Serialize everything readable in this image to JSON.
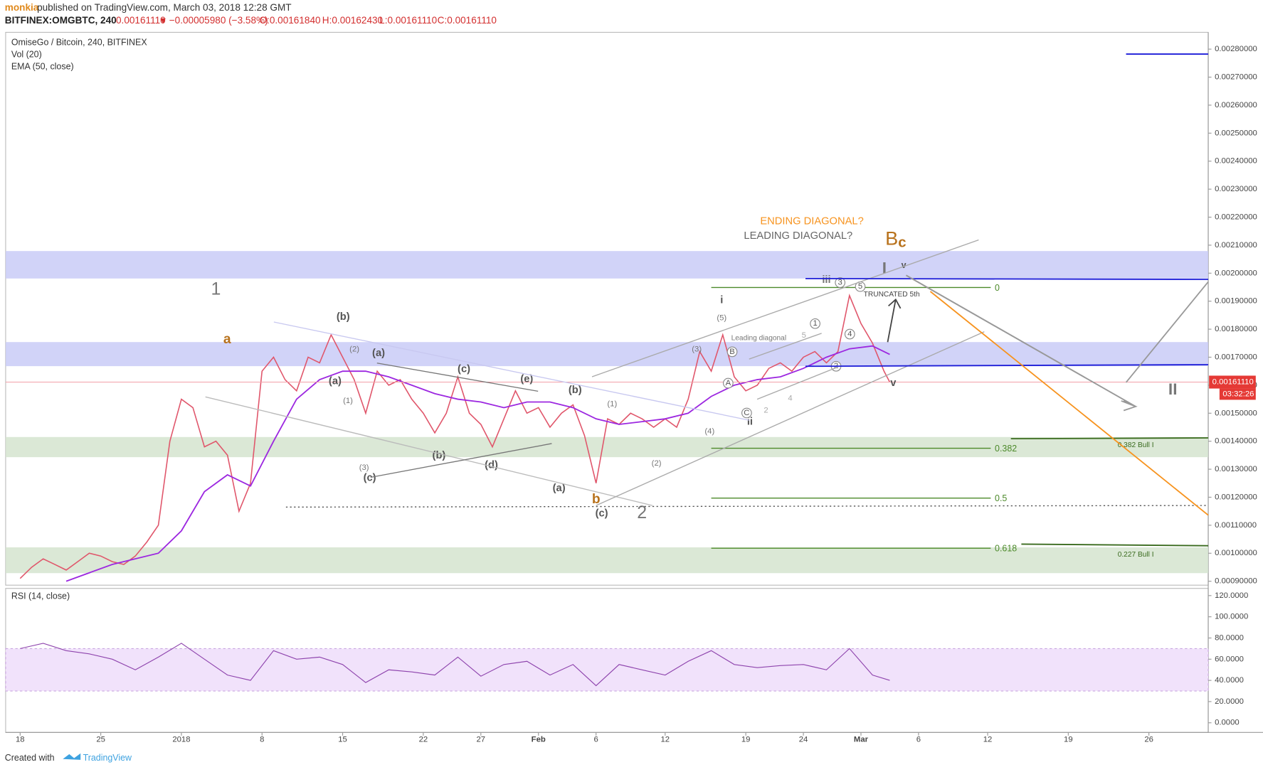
{
  "header": {
    "author": "monkia",
    "published": "published on TradingView.com, March 03, 2018 12:28 GMT",
    "symbol": "BITFINEX:OMGBTC, 240",
    "last": "0.00161110",
    "arrow": "▼",
    "change": "−0.00005980 (−3.58%)",
    "open": "O:0.00161840",
    "high": "H:0.00162430",
    "low": "L:0.00161110",
    "close": "C:0.00161110"
  },
  "footer": {
    "created": "Created with",
    "brand": "TradingView"
  },
  "chart_data": {
    "type": "line",
    "title": "OmiseGo / Bitcoin, 240, BITFINEX",
    "volume_label": "Vol (20)",
    "xlim": [
      -1.26,
      103.15
    ],
    "xticks": [
      {
        "value": 0,
        "label": "18"
      },
      {
        "value": 7,
        "label": "25"
      },
      {
        "value": 14,
        "label": "2018"
      },
      {
        "value": 21,
        "label": "8"
      },
      {
        "value": 28,
        "label": "15"
      },
      {
        "value": 35,
        "label": "22"
      },
      {
        "value": 40,
        "label": "27"
      },
      {
        "value": 45,
        "label": "Feb"
      },
      {
        "value": 50,
        "label": "6"
      },
      {
        "value": 56,
        "label": "12"
      },
      {
        "value": 63,
        "label": "19"
      },
      {
        "value": 68,
        "label": "24"
      },
      {
        "value": 73,
        "label": "Mar"
      },
      {
        "value": 78,
        "label": "6"
      },
      {
        "value": 84,
        "label": "12"
      },
      {
        "value": 91,
        "label": "19"
      },
      {
        "value": 98,
        "label": "26"
      }
    ],
    "ylim": [
      0.000886,
      0.00286
    ],
    "yticks": [
      {
        "value": 0.0009,
        "label": "0.00090000"
      },
      {
        "value": 0.001,
        "label": "0.00100000"
      },
      {
        "value": 0.0011,
        "label": "0.00110000"
      },
      {
        "value": 0.0012,
        "label": "0.00120000"
      },
      {
        "value": 0.0013,
        "label": "0.00130000"
      },
      {
        "value": 0.0014,
        "label": "0.00140000"
      },
      {
        "value": 0.0015,
        "label": "0.00150000"
      },
      {
        "value": 0.0016,
        "label": "0.00160000"
      },
      {
        "value": 0.0017,
        "label": "0.00170000"
      },
      {
        "value": 0.0018,
        "label": "0.00180000"
      },
      {
        "value": 0.0019,
        "label": "0.00190000"
      },
      {
        "value": 0.002,
        "label": "0.00200000"
      },
      {
        "value": 0.0021,
        "label": "0.00210000"
      },
      {
        "value": 0.0022,
        "label": "0.00220000"
      },
      {
        "value": 0.0023,
        "label": "0.00230000"
      },
      {
        "value": 0.0024,
        "label": "0.00240000"
      },
      {
        "value": 0.0025,
        "label": "0.00250000"
      },
      {
        "value": 0.0026,
        "label": "0.00260000"
      },
      {
        "value": 0.0027,
        "label": "0.00270000"
      },
      {
        "value": 0.0028,
        "label": "0.00280000"
      }
    ],
    "x": [
      0,
      1,
      2,
      3,
      4,
      5,
      6,
      7,
      8,
      9,
      10,
      11,
      12,
      13,
      14,
      15,
      16,
      17,
      18,
      19,
      20,
      21,
      22,
      23,
      24,
      25,
      26,
      27,
      28,
      29,
      30,
      31,
      32,
      33,
      34,
      35,
      36,
      37,
      38,
      39,
      40,
      41,
      42,
      43,
      44,
      45,
      46,
      47,
      48,
      49,
      50,
      51,
      52,
      53,
      54,
      55,
      56,
      57,
      58,
      59,
      60,
      61,
      62,
      63,
      64,
      65,
      66,
      67,
      68,
      69,
      70,
      71,
      72,
      73,
      74,
      75,
      75.5
    ],
    "series": [
      {
        "name": "OmiseGo / Bitcoin, 240, BITFINEX",
        "color": "#e0566b",
        "values": [
          0.00091,
          0.00095,
          0.00098,
          0.00096,
          0.00094,
          0.00097,
          0.001,
          0.00099,
          0.00097,
          0.00096,
          0.00099,
          0.00104,
          0.0011,
          0.0014,
          0.00155,
          0.00152,
          0.00138,
          0.0014,
          0.00135,
          0.00115,
          0.00125,
          0.00165,
          0.0017,
          0.00162,
          0.00158,
          0.0017,
          0.00168,
          0.00178,
          0.0017,
          0.00162,
          0.0015,
          0.00165,
          0.0016,
          0.00162,
          0.00155,
          0.0015,
          0.00143,
          0.0015,
          0.00163,
          0.0015,
          0.00146,
          0.00138,
          0.00148,
          0.00158,
          0.0015,
          0.00152,
          0.00145,
          0.0015,
          0.00153,
          0.00142,
          0.00125,
          0.00148,
          0.00146,
          0.0015,
          0.00148,
          0.00145,
          0.00148,
          0.00145,
          0.00155,
          0.00172,
          0.00165,
          0.00178,
          0.00163,
          0.00158,
          0.0016,
          0.00166,
          0.00168,
          0.00165,
          0.0017,
          0.00172,
          0.00168,
          0.00172,
          0.00192,
          0.00182,
          0.00175,
          0.00165,
          0.0016111
        ]
      }
    ],
    "ema": {
      "name": "EMA (50, close)",
      "color": "#9c27e0",
      "x": [
        4,
        8,
        12,
        14,
        16,
        18,
        20,
        22,
        24,
        26,
        28,
        30,
        32,
        34,
        36,
        38,
        40,
        42,
        44,
        46,
        48,
        50,
        52,
        54,
        56,
        58,
        60,
        62,
        64,
        66,
        68,
        70,
        72,
        74,
        75.5
      ],
      "values": [
        0.0009,
        0.00096,
        0.001,
        0.00108,
        0.00122,
        0.00128,
        0.00124,
        0.0014,
        0.00155,
        0.00162,
        0.00165,
        0.00165,
        0.00163,
        0.0016,
        0.00157,
        0.00155,
        0.00154,
        0.00152,
        0.00154,
        0.00154,
        0.00152,
        0.00148,
        0.00146,
        0.00147,
        0.00148,
        0.0015,
        0.00156,
        0.0016,
        0.00162,
        0.00163,
        0.00166,
        0.0017,
        0.00173,
        0.00174,
        0.00171
      ]
    },
    "last_price": {
      "value": 0.0016111,
      "label": "0.00161110"
    },
    "countdown": "03:32:26",
    "zones": [
      {
        "from": 0.001981,
        "to": 0.002079,
        "color": "#c9cbf7"
      },
      {
        "from": 0.001668,
        "to": 0.001754,
        "color": "#c9cbf7"
      },
      {
        "from": 0.001343,
        "to": 0.001415,
        "color": "#d5e4cf"
      },
      {
        "from": 0.000929,
        "to": 0.001021,
        "color": "#d5e4cf"
      }
    ],
    "fib_levels": [
      {
        "ratio": 0,
        "price": 0.001949
      },
      {
        "ratio": 0.382,
        "price": 0.001375
      },
      {
        "ratio": 0.5,
        "price": 0.001197
      },
      {
        "ratio": 0.618,
        "price": 0.001018
      }
    ],
    "rsi": {
      "name": "RSI (14, close)",
      "color": "#8e44ad",
      "ylim": [
        -9.1,
        126.8
      ],
      "yticks": [
        {
          "value": 0,
          "label": "0.0000"
        },
        {
          "value": 20,
          "label": "20.0000"
        },
        {
          "value": 40,
          "label": "40.0000"
        },
        {
          "value": 60,
          "label": "60.0000"
        },
        {
          "value": 80,
          "label": "80.0000"
        },
        {
          "value": 100,
          "label": "100.0000"
        },
        {
          "value": 120,
          "label": "120.0000"
        }
      ],
      "band": [
        30,
        70
      ],
      "x": [
        0,
        2,
        4,
        6,
        8,
        10,
        12,
        14,
        16,
        18,
        20,
        22,
        24,
        26,
        28,
        30,
        32,
        34,
        36,
        38,
        40,
        42,
        44,
        46,
        48,
        50,
        52,
        54,
        56,
        58,
        60,
        62,
        64,
        66,
        68,
        70,
        72,
        74,
        75.5
      ],
      "values": [
        70,
        75,
        68,
        65,
        60,
        50,
        62,
        75,
        60,
        45,
        40,
        68,
        60,
        62,
        55,
        38,
        50,
        48,
        45,
        62,
        44,
        55,
        58,
        45,
        55,
        35,
        55,
        50,
        45,
        58,
        68,
        55,
        52,
        54,
        55,
        50,
        70,
        45,
        40
      ]
    },
    "annotations": [
      "1",
      "a",
      "(b)",
      "(a)",
      "(c)",
      "(e)",
      "(b)",
      "(a)",
      "(1)",
      "(2)",
      "(3)",
      "(c)",
      "(b)",
      "(d)",
      "(a)",
      "b",
      "(c)",
      "2",
      "(1)",
      "(2)",
      "(3)",
      "(4)",
      "(5)",
      "i",
      "ii",
      "iii",
      "I",
      "v",
      "v",
      "II",
      "ENDING DIAGONAL?",
      "LEADING DIAGONAL?",
      "B",
      "c",
      "TRUNCATED 5th",
      "Leading diagonal",
      "5",
      "2",
      "4",
      "A",
      "B",
      "C",
      "1",
      "3",
      "5",
      "4",
      "2",
      "0.382 Bull I",
      "0.227 Bull I"
    ]
  }
}
